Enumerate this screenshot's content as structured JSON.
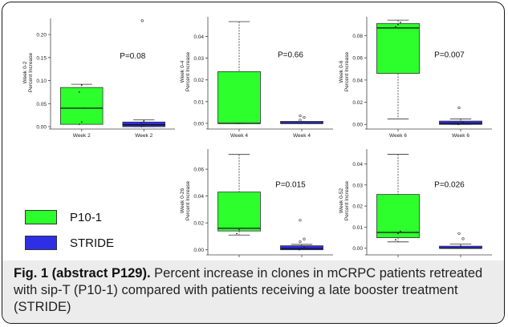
{
  "colors": {
    "p10": "#2dff2d",
    "stride": "#2e2ee6"
  },
  "legend": {
    "p10_label": "P10-1",
    "stride_label": "STRIDE"
  },
  "caption": {
    "bold": "Fig. 1 (abstract P129).",
    "text": " Percent increase in clones in mCRPC patients retreated with sip-T (P10-1) compared with patients receiving a late booster treatment (STRIDE)"
  },
  "chart_data": [
    {
      "type": "box",
      "ylabel_top": "Week 0-2",
      "ylabel": "Percent Increase",
      "ylim": [
        0,
        0.235
      ],
      "yticks": [
        0.0,
        0.05,
        0.1,
        0.15,
        0.2
      ],
      "tick_labels": [
        "0.00",
        "0.05",
        "0.10",
        "0.15",
        "0.20"
      ],
      "pvalue": "P=0.08",
      "categories": [
        "Week 2",
        "Week 2"
      ],
      "series": [
        {
          "legend": "P10-1",
          "min": 0.005,
          "q1": 0.005,
          "median": 0.04,
          "q3": 0.085,
          "max": 0.092,
          "outliers": [],
          "points": [
            0.005,
            0.01,
            0.04,
            0.075,
            0.09
          ]
        },
        {
          "legend": "STRIDE",
          "min": 0.0,
          "q1": 0.0,
          "median": 0.004,
          "q3": 0.01,
          "max": 0.015,
          "outliers": [
            0.23
          ],
          "points": [
            0.0,
            0.002,
            0.005,
            0.008,
            0.012
          ]
        }
      ]
    },
    {
      "type": "box",
      "ylabel_top": "Week 0-4",
      "ylabel": "Percent Increase",
      "ylim": [
        -0.0015,
        0.049
      ],
      "yticks": [
        0.0,
        0.01,
        0.02,
        0.03,
        0.04
      ],
      "tick_labels": [
        "0.00",
        "0.01",
        "0.02",
        "0.03",
        "0.04"
      ],
      "pvalue": "P=0.66",
      "categories": [
        "Week 4",
        "Week 4"
      ],
      "series": [
        {
          "legend": "P10-1",
          "min": 0.0,
          "q1": 0.0,
          "median": 0.0,
          "q3": 0.0238,
          "max": 0.0468,
          "outliers": [],
          "points": [
            0.0,
            0.0,
            0.0
          ]
        },
        {
          "legend": "STRIDE",
          "min": 0.0,
          "q1": 0.0,
          "median": 0.0,
          "q3": 0.0,
          "max": 0.0,
          "outliers": [
            0.0035,
            0.0028,
            0.0015,
            0.0005
          ],
          "points": [
            0.0,
            0.0
          ]
        }
      ]
    },
    {
      "type": "box",
      "ylabel_top": "Week 0-6",
      "ylabel": "Percent Increase",
      "ylim": [
        -0.002,
        0.097
      ],
      "yticks": [
        0.0,
        0.02,
        0.04,
        0.06,
        0.08
      ],
      "tick_labels": [
        "0.00",
        "0.02",
        "0.04",
        "0.06",
        "0.08"
      ],
      "pvalue": "P=0.007",
      "categories": [
        "Week 6",
        "Week 6"
      ],
      "series": [
        {
          "legend": "P10-1",
          "min": 0.005,
          "q1": 0.046,
          "median": 0.087,
          "q3": 0.091,
          "max": 0.094,
          "outliers": [],
          "points": [
            0.088,
            0.09,
            0.092
          ]
        },
        {
          "legend": "STRIDE",
          "min": 0.0,
          "q1": 0.0,
          "median": 0.001,
          "q3": 0.003,
          "max": 0.005,
          "outliers": [
            0.015
          ],
          "points": [
            0.0,
            0.001,
            0.002
          ]
        }
      ]
    },
    {
      "type": "box",
      "ylabel_top": "Week 0-26",
      "ylabel": "Percent Increase",
      "ylim": [
        -0.002,
        0.075
      ],
      "yticks": [
        0.0,
        0.02,
        0.04,
        0.06
      ],
      "tick_labels": [
        "0.00",
        "0.02",
        "0.04",
        "0.06"
      ],
      "pvalue": "P=0.015",
      "categories": [
        "Week 26",
        "Week 26"
      ],
      "series": [
        {
          "legend": "P10-1",
          "min": 0.011,
          "q1": 0.014,
          "median": 0.016,
          "q3": 0.043,
          "max": 0.071,
          "outliers": [],
          "points": [
            0.012,
            0.015,
            0.016
          ]
        },
        {
          "legend": "STRIDE",
          "min": 0.0,
          "q1": 0.0,
          "median": 0.001,
          "q3": 0.003,
          "max": 0.004,
          "outliers": [
            0.022,
            0.008,
            0.006
          ],
          "points": [
            0.0,
            0.001,
            0.002
          ]
        }
      ]
    },
    {
      "type": "box",
      "ylabel_top": "Week 0-52",
      "ylabel": "Percent Increase",
      "ylim": [
        -0.002,
        0.047
      ],
      "yticks": [
        0.0,
        0.01,
        0.02,
        0.03,
        0.04
      ],
      "tick_labels": [
        "0.00",
        "0.01",
        "0.02",
        "0.03",
        "0.04"
      ],
      "pvalue": "P=0.026",
      "categories": [
        "Week 52",
        "Week 52"
      ],
      "series": [
        {
          "legend": "P10-1",
          "min": 0.003,
          "q1": 0.005,
          "median": 0.0075,
          "q3": 0.0255,
          "max": 0.0445,
          "outliers": [],
          "points": [
            0.004,
            0.007,
            0.008
          ]
        },
        {
          "legend": "STRIDE",
          "min": 0.0,
          "q1": 0.0,
          "median": 0.0,
          "q3": 0.001,
          "max": 0.002,
          "outliers": [
            0.007,
            0.0045
          ],
          "points": [
            0.0,
            0.001
          ]
        }
      ]
    }
  ]
}
